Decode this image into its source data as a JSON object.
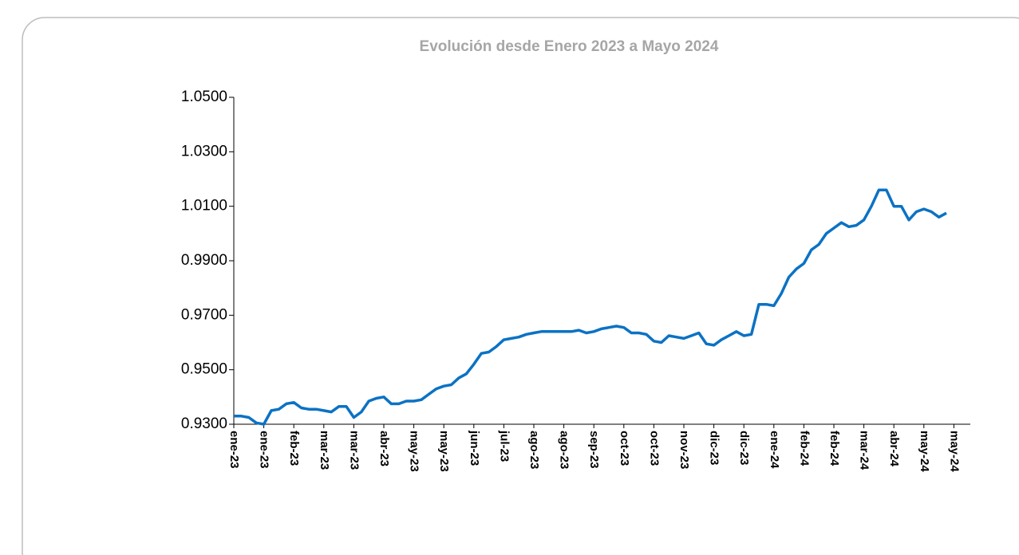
{
  "chart_data": {
    "type": "line",
    "title": "Evolución desde Enero 2023 a Mayo 2024",
    "categories": [
      "ene-23",
      null,
      null,
      null,
      "ene-23",
      null,
      null,
      null,
      "feb-23",
      null,
      null,
      null,
      "mar-23",
      null,
      null,
      null,
      "mar-23",
      null,
      null,
      null,
      "abr-23",
      null,
      null,
      null,
      "may-23",
      null,
      null,
      null,
      "may-23",
      null,
      null,
      null,
      "jun-23",
      null,
      null,
      null,
      "jul-23",
      null,
      null,
      null,
      "ago-23",
      null,
      null,
      null,
      "ago-23",
      null,
      null,
      null,
      "sep-23",
      null,
      null,
      null,
      "oct-23",
      null,
      null,
      null,
      "oct-23",
      null,
      null,
      null,
      "nov-23",
      null,
      null,
      null,
      "dic-23",
      null,
      null,
      null,
      "dic-23",
      null,
      null,
      null,
      "ene-24",
      null,
      null,
      null,
      "feb-24",
      null,
      null,
      null,
      "feb-24",
      null,
      null,
      null,
      "mar-24",
      null,
      null,
      null,
      "abr-24",
      null,
      null,
      null,
      "may-24",
      null,
      null,
      null,
      "may-24",
      null
    ],
    "series": [
      {
        "color": "#0b72c4",
        "values": [
          0.933,
          0.933,
          0.9325,
          0.9305,
          0.93,
          0.935,
          0.9355,
          0.9375,
          0.938,
          0.936,
          0.9355,
          0.9355,
          0.935,
          0.9345,
          0.9365,
          0.9365,
          0.9325,
          0.9345,
          0.9385,
          0.9395,
          0.94,
          0.9375,
          0.9375,
          0.9385,
          0.9385,
          0.939,
          0.941,
          0.943,
          0.944,
          0.9445,
          0.947,
          0.9485,
          0.952,
          0.956,
          0.9565,
          0.9585,
          0.961,
          0.9615,
          0.962,
          0.963,
          0.9635,
          0.964,
          0.964,
          0.964,
          0.964,
          0.964,
          0.9645,
          0.9635,
          0.964,
          0.965,
          0.9655,
          0.966,
          0.9655,
          0.9635,
          0.9635,
          0.963,
          0.9605,
          0.96,
          0.9625,
          0.962,
          0.9615,
          0.9625,
          0.9635,
          0.9595,
          0.959,
          0.961,
          0.9625,
          0.964,
          0.9625,
          0.963,
          0.974,
          0.974,
          0.9735,
          0.978,
          0.984,
          0.987,
          0.989,
          0.994,
          0.996,
          1.0,
          1.002,
          1.004,
          1.0025,
          1.003,
          1.005,
          1.01,
          1.016,
          1.016,
          1.01,
          1.01,
          1.005,
          1.008,
          1.009,
          1.008,
          1.006,
          1.0075,
          null,
          null
        ]
      }
    ],
    "ylim": [
      0.93,
      1.05
    ],
    "yticks": [
      {
        "value": 0.93,
        "label": "0.9300"
      },
      {
        "value": 0.95,
        "label": "0.9500"
      },
      {
        "value": 0.97,
        "label": "0.9700"
      },
      {
        "value": 0.99,
        "label": "0.9900"
      },
      {
        "value": 1.01,
        "label": "1.0100"
      },
      {
        "value": 1.03,
        "label": "1.0300"
      },
      {
        "value": 1.05,
        "label": "1.0500"
      }
    ]
  }
}
